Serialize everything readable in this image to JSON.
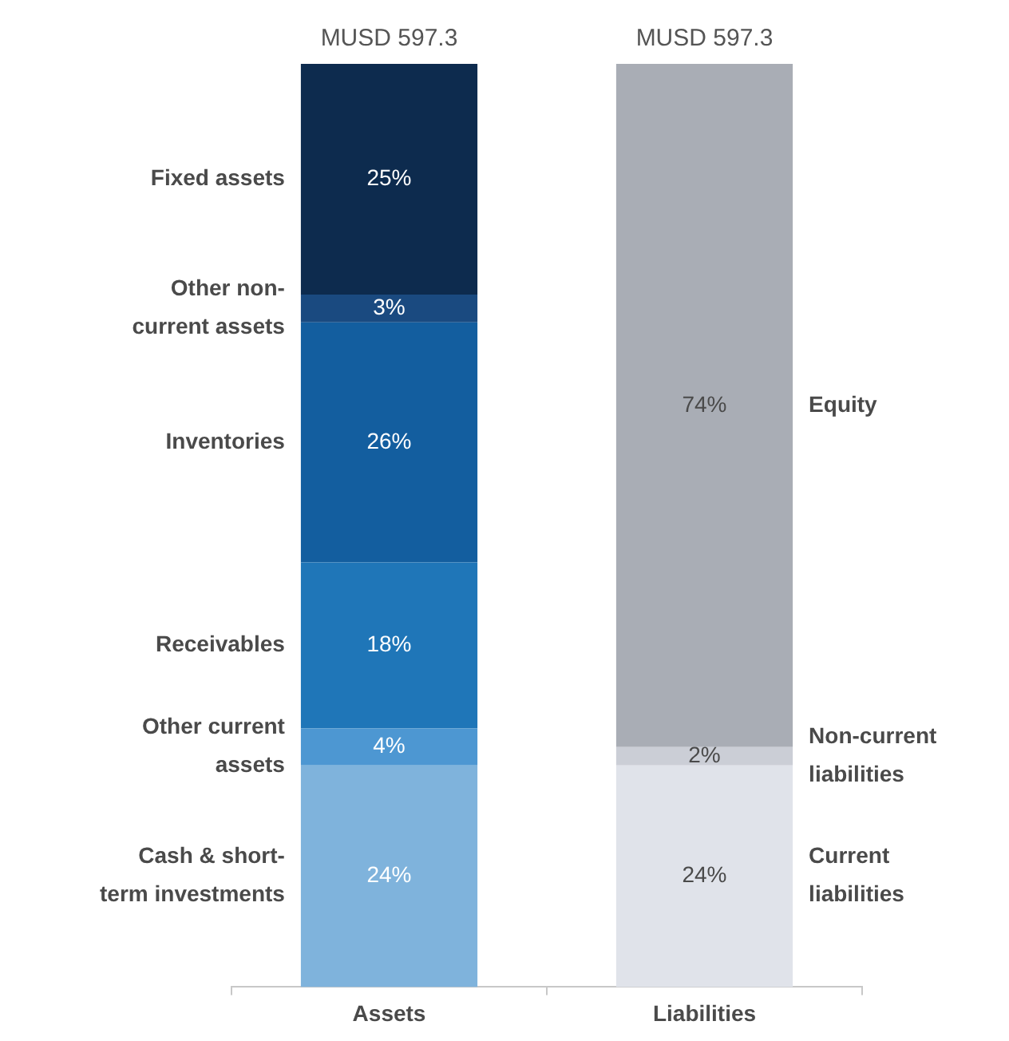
{
  "chart_data": {
    "type": "bar",
    "stacked": true,
    "categories": [
      "Assets",
      "Liabilities"
    ],
    "series": [
      {
        "name": "Cash & short-term investments",
        "color": "#7fb3dc",
        "values": [
          24,
          null
        ],
        "value_labels": [
          "24%",
          null
        ]
      },
      {
        "name": "Other current assets",
        "color": "#4d97d2",
        "values": [
          4,
          null
        ],
        "value_labels": [
          "4%",
          null
        ]
      },
      {
        "name": "Receivables",
        "color": "#1f76b8",
        "values": [
          18,
          null
        ],
        "value_labels": [
          "18%",
          null
        ]
      },
      {
        "name": "Inventories",
        "color": "#135e9f",
        "values": [
          26,
          null
        ],
        "value_labels": [
          "26%",
          null
        ]
      },
      {
        "name": "Other non-current assets",
        "color": "#1a4a80",
        "values": [
          3,
          null
        ],
        "value_labels": [
          "3%",
          null
        ]
      },
      {
        "name": "Fixed assets",
        "color": "#0d2b4e",
        "values": [
          25,
          null
        ],
        "value_labels": [
          "25%",
          null
        ]
      },
      {
        "name": "Current liabilities",
        "color": "#e0e3ea",
        "values": [
          null,
          24
        ],
        "value_labels": [
          null,
          "24%"
        ]
      },
      {
        "name": "Non-current liabilities",
        "color": "#cbced6",
        "values": [
          null,
          2
        ],
        "value_labels": [
          null,
          "2%"
        ]
      },
      {
        "name": "Equity",
        "color": "#a9adb5",
        "values": [
          null,
          74
        ],
        "value_labels": [
          null,
          "74%"
        ]
      }
    ],
    "totals": [
      "MUSD 597.3",
      "MUSD 597.3"
    ],
    "ylim": [
      0,
      100
    ],
    "tick_labels": "x",
    "grid": false,
    "legend": false
  }
}
